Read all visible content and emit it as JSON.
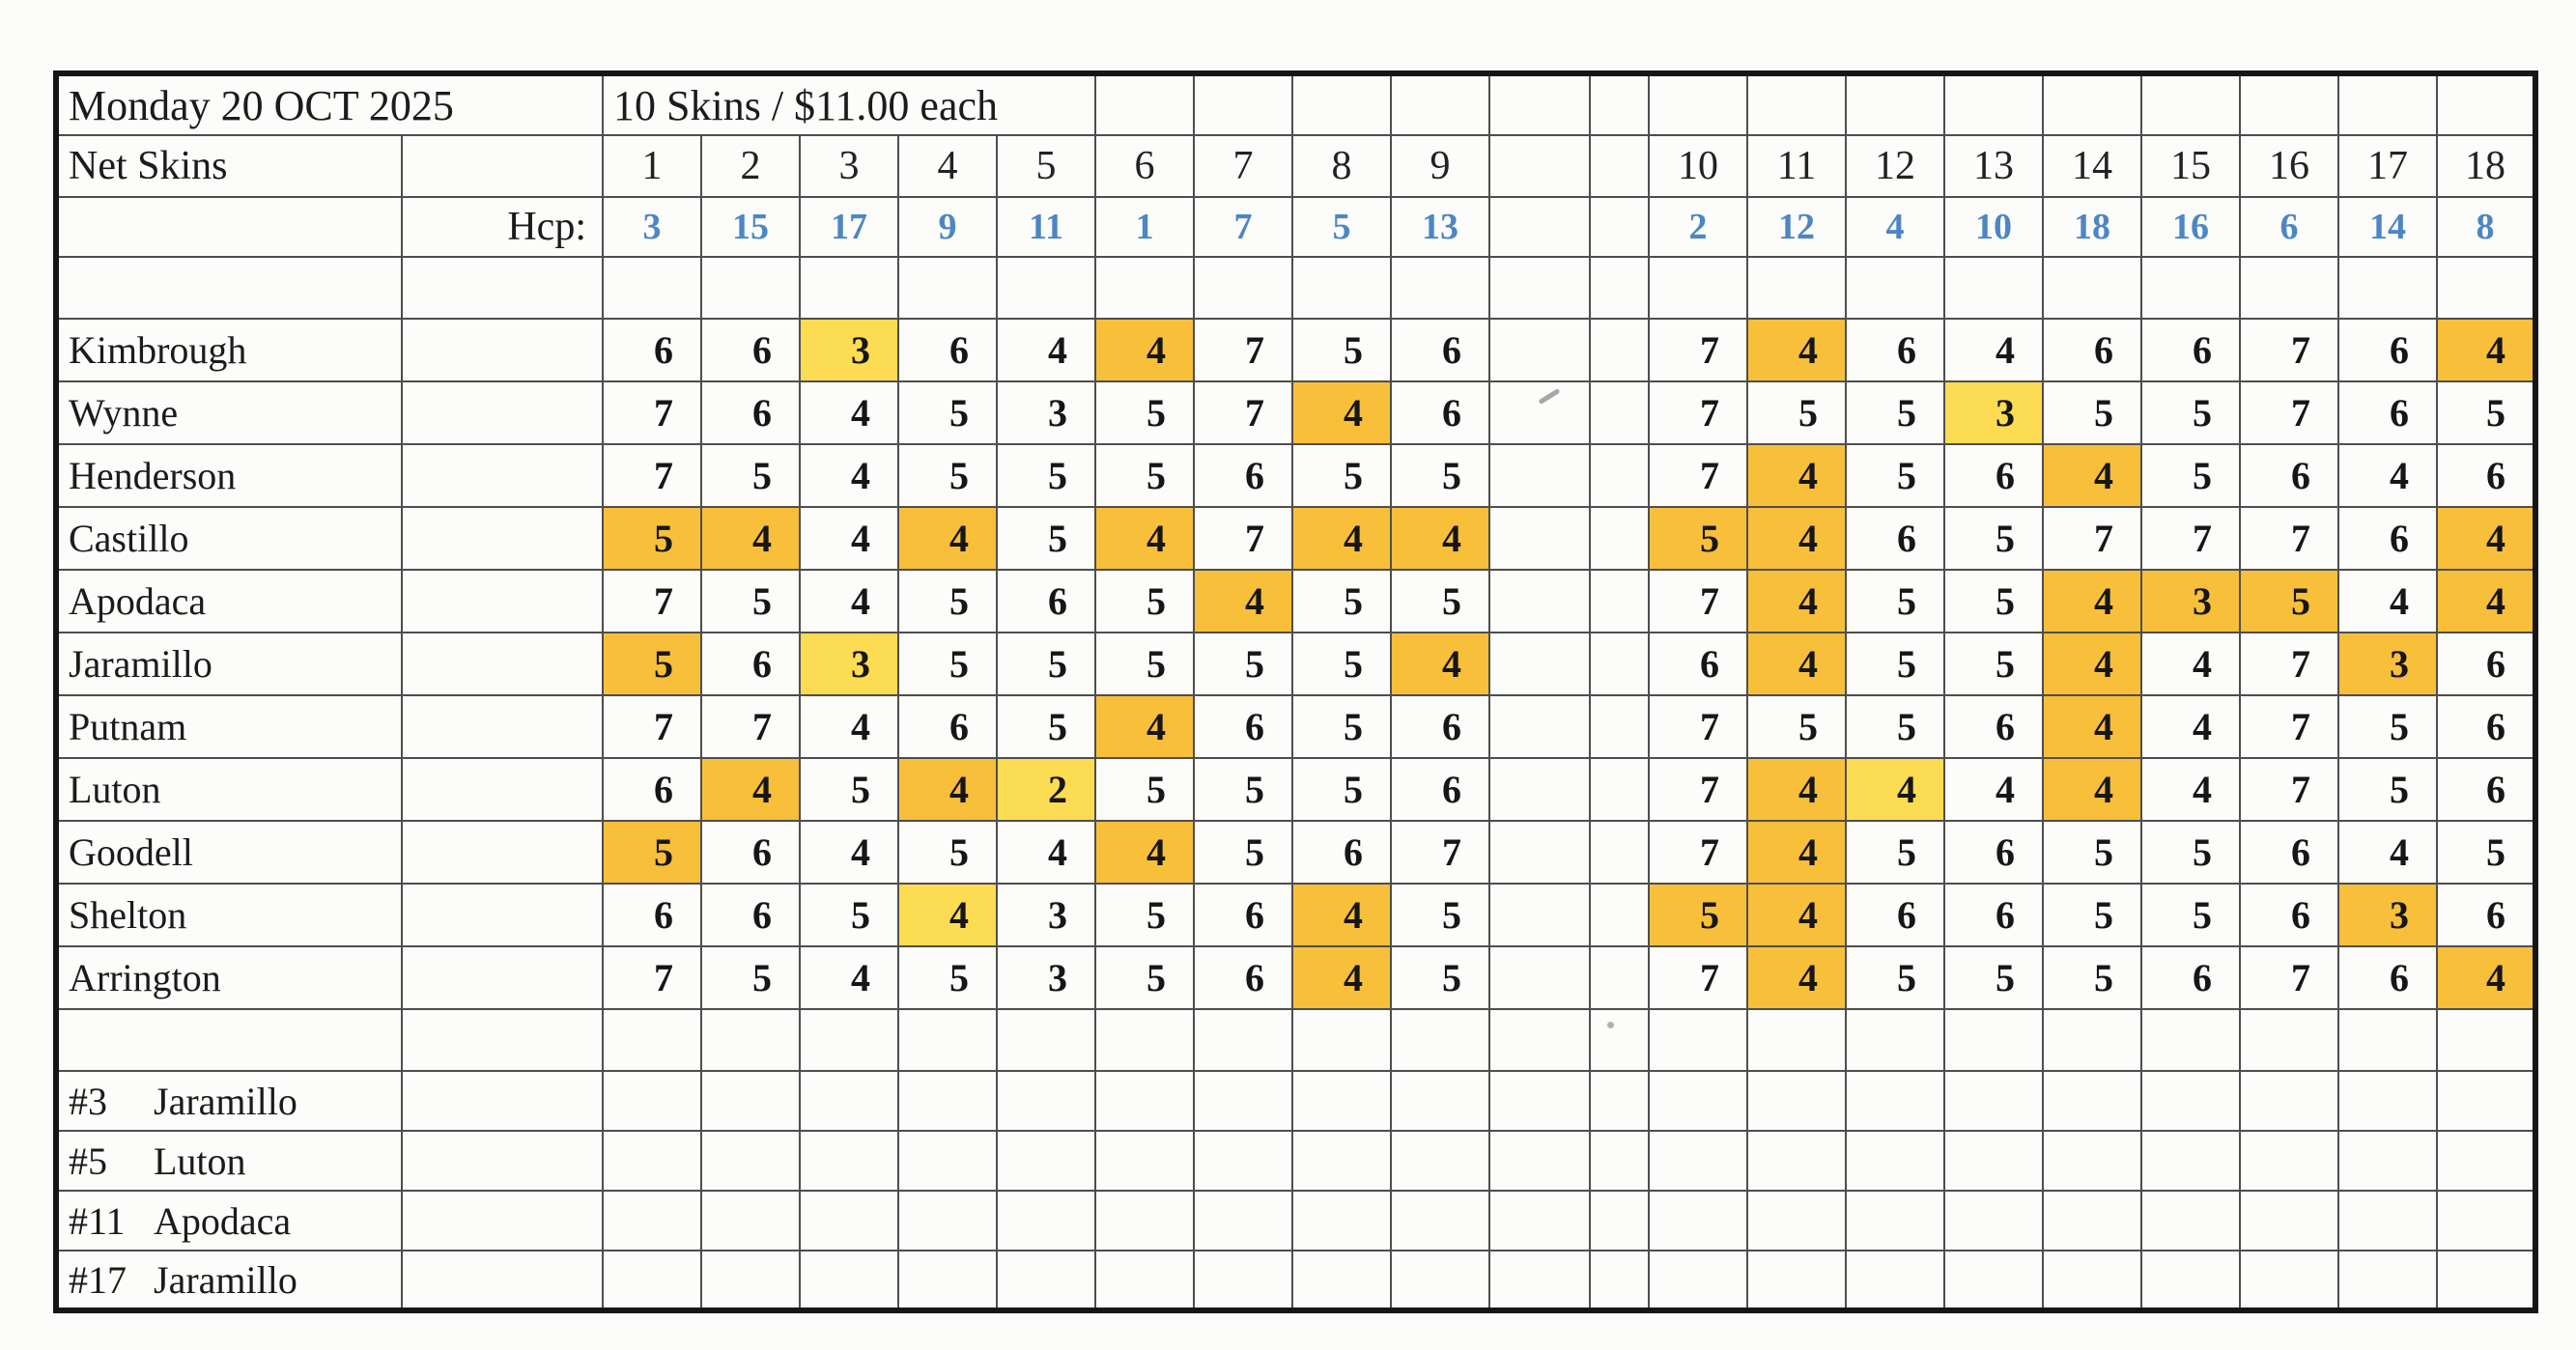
{
  "header": {
    "date": "Monday 20 OCT 2025",
    "game": "10 Skins / $11.00 each",
    "row_label": "Net Skins",
    "hcp_label": "Hcp:"
  },
  "holes": [
    1,
    2,
    3,
    4,
    5,
    6,
    7,
    8,
    9,
    10,
    11,
    12,
    13,
    14,
    15,
    16,
    17,
    18
  ],
  "hcps": [
    3,
    15,
    17,
    9,
    11,
    1,
    7,
    5,
    13,
    2,
    12,
    4,
    10,
    18,
    16,
    6,
    14,
    8
  ],
  "players": [
    {
      "name": "Kimbrough",
      "scores": [
        6,
        6,
        3,
        6,
        4,
        4,
        7,
        5,
        6,
        7,
        4,
        6,
        4,
        6,
        6,
        7,
        6,
        4
      ],
      "hl": {
        "3": 2,
        "6": 1,
        "11": 1,
        "18": 1
      }
    },
    {
      "name": "Wynne",
      "scores": [
        7,
        6,
        4,
        5,
        3,
        5,
        7,
        4,
        6,
        7,
        5,
        5,
        3,
        5,
        5,
        7,
        6,
        5
      ],
      "hl": {
        "8": 1,
        "13": 2
      }
    },
    {
      "name": "Henderson",
      "scores": [
        7,
        5,
        4,
        5,
        5,
        5,
        6,
        5,
        5,
        7,
        4,
        5,
        6,
        4,
        5,
        6,
        4,
        6
      ],
      "hl": {
        "11": 1,
        "14": 1
      }
    },
    {
      "name": "Castillo",
      "scores": [
        5,
        4,
        4,
        4,
        5,
        4,
        7,
        4,
        4,
        5,
        4,
        6,
        5,
        7,
        7,
        7,
        6,
        4
      ],
      "hl": {
        "1": 1,
        "2": 1,
        "4": 1,
        "6": 1,
        "8": 1,
        "9": 1,
        "10": 1,
        "11": 1,
        "18": 1
      }
    },
    {
      "name": "Apodaca",
      "scores": [
        7,
        5,
        4,
        5,
        6,
        5,
        4,
        5,
        5,
        7,
        4,
        5,
        5,
        4,
        3,
        5,
        4,
        4
      ],
      "hl": {
        "7": 1,
        "11": 1,
        "14": 1,
        "15": 1,
        "16": 1,
        "18": 1
      }
    },
    {
      "name": "Jaramillo",
      "scores": [
        5,
        6,
        3,
        5,
        5,
        5,
        5,
        5,
        4,
        6,
        4,
        5,
        5,
        4,
        4,
        7,
        3,
        6
      ],
      "hl": {
        "1": 1,
        "3": 2,
        "9": 1,
        "11": 1,
        "14": 1,
        "17": 1
      }
    },
    {
      "name": "Putnam",
      "scores": [
        7,
        7,
        4,
        6,
        5,
        4,
        6,
        5,
        6,
        7,
        5,
        5,
        6,
        4,
        4,
        7,
        5,
        6
      ],
      "hl": {
        "6": 1,
        "14": 1
      }
    },
    {
      "name": "Luton",
      "scores": [
        6,
        4,
        5,
        4,
        2,
        5,
        5,
        5,
        6,
        7,
        4,
        4,
        4,
        4,
        4,
        7,
        5,
        6
      ],
      "hl": {
        "2": 1,
        "4": 1,
        "5": 2,
        "11": 1,
        "12": 2,
        "14": 1
      }
    },
    {
      "name": "Goodell",
      "scores": [
        5,
        6,
        4,
        5,
        4,
        4,
        5,
        6,
        7,
        7,
        4,
        5,
        6,
        5,
        5,
        6,
        4,
        5
      ],
      "hl": {
        "1": 1,
        "6": 1,
        "11": 1
      }
    },
    {
      "name": "Shelton",
      "scores": [
        6,
        6,
        5,
        4,
        3,
        5,
        6,
        4,
        5,
        5,
        4,
        6,
        6,
        5,
        5,
        6,
        3,
        6
      ],
      "hl": {
        "4": 2,
        "8": 1,
        "10": 1,
        "11": 1,
        "17": 1
      }
    },
    {
      "name": "Arrington",
      "scores": [
        7,
        5,
        4,
        5,
        3,
        5,
        6,
        4,
        5,
        7,
        4,
        5,
        5,
        5,
        6,
        7,
        6,
        4
      ],
      "hl": {
        "8": 1,
        "11": 1,
        "18": 1
      }
    }
  ],
  "winners": [
    {
      "hole": "#3",
      "name": "Jaramillo"
    },
    {
      "hole": "#5",
      "name": "Luton"
    },
    {
      "hole": "#11",
      "name": "Apodaca"
    },
    {
      "hole": "#17",
      "name": "Jaramillo"
    }
  ],
  "colors": {
    "hcp_blue": "#4d86c4",
    "highlight_orange": "#f8bf3b",
    "highlight_yellow": "#fcdc52",
    "grid_line": "#4e4e4e"
  }
}
